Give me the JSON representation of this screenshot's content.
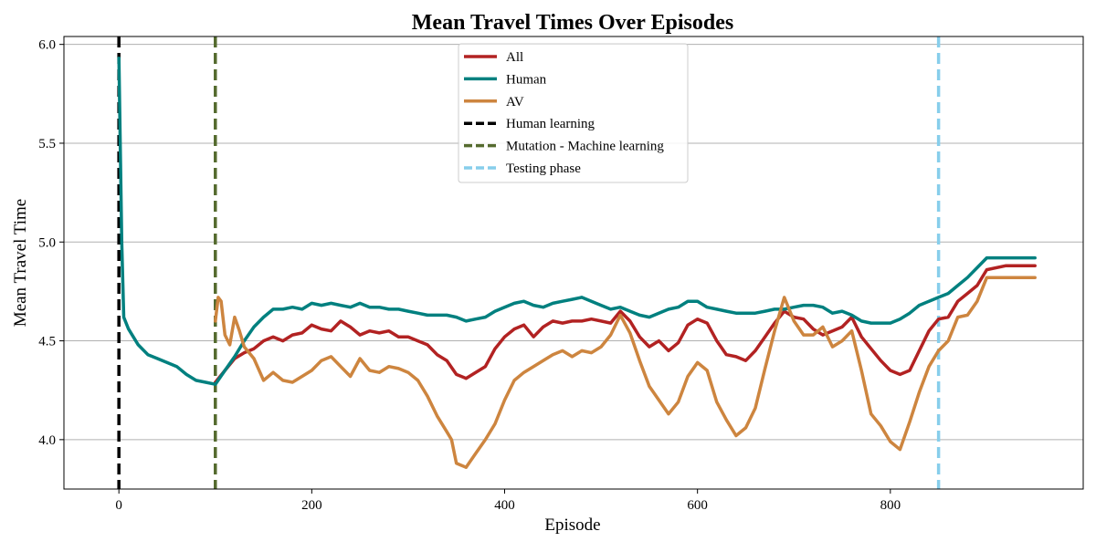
{
  "chart_data": {
    "type": "line",
    "title": "Mean Travel Times Over Episodes",
    "xlabel": "Episode",
    "ylabel": "Mean Travel Time",
    "xlim": [
      -57,
      1000
    ],
    "ylim": [
      3.75,
      6.04
    ],
    "x_ticks": [
      0,
      200,
      400,
      600,
      800
    ],
    "y_ticks": [
      4.0,
      4.5,
      5.0,
      5.5,
      6.0
    ],
    "x_tick_labels": [
      "0",
      "200",
      "400",
      "600",
      "800"
    ],
    "y_tick_labels": [
      "4.0",
      "4.5",
      "5.0",
      "5.5",
      "6.0"
    ],
    "grid": "horizontal",
    "legend_position": "top-center",
    "series": [
      {
        "name": "All",
        "color": "#b22222",
        "points": [
          [
            100,
            4.29
          ],
          [
            110,
            4.35
          ],
          [
            120,
            4.41
          ],
          [
            130,
            4.44
          ],
          [
            140,
            4.46
          ],
          [
            150,
            4.5
          ],
          [
            160,
            4.52
          ],
          [
            170,
            4.5
          ],
          [
            180,
            4.53
          ],
          [
            190,
            4.54
          ],
          [
            200,
            4.58
          ],
          [
            210,
            4.56
          ],
          [
            220,
            4.55
          ],
          [
            230,
            4.6
          ],
          [
            240,
            4.57
          ],
          [
            250,
            4.53
          ],
          [
            260,
            4.55
          ],
          [
            270,
            4.54
          ],
          [
            280,
            4.55
          ],
          [
            290,
            4.52
          ],
          [
            300,
            4.52
          ],
          [
            310,
            4.5
          ],
          [
            320,
            4.48
          ],
          [
            330,
            4.43
          ],
          [
            340,
            4.4
          ],
          [
            350,
            4.33
          ],
          [
            360,
            4.31
          ],
          [
            370,
            4.34
          ],
          [
            380,
            4.37
          ],
          [
            390,
            4.46
          ],
          [
            400,
            4.52
          ],
          [
            410,
            4.56
          ],
          [
            420,
            4.58
          ],
          [
            430,
            4.52
          ],
          [
            440,
            4.57
          ],
          [
            450,
            4.6
          ],
          [
            460,
            4.59
          ],
          [
            470,
            4.6
          ],
          [
            480,
            4.6
          ],
          [
            490,
            4.61
          ],
          [
            500,
            4.6
          ],
          [
            510,
            4.59
          ],
          [
            520,
            4.65
          ],
          [
            530,
            4.6
          ],
          [
            540,
            4.52
          ],
          [
            550,
            4.47
          ],
          [
            560,
            4.5
          ],
          [
            570,
            4.45
          ],
          [
            580,
            4.49
          ],
          [
            590,
            4.58
          ],
          [
            600,
            4.61
          ],
          [
            610,
            4.59
          ],
          [
            620,
            4.5
          ],
          [
            630,
            4.43
          ],
          [
            640,
            4.42
          ],
          [
            650,
            4.4
          ],
          [
            660,
            4.45
          ],
          [
            670,
            4.52
          ],
          [
            680,
            4.59
          ],
          [
            690,
            4.65
          ],
          [
            700,
            4.62
          ],
          [
            710,
            4.61
          ],
          [
            720,
            4.56
          ],
          [
            730,
            4.53
          ],
          [
            740,
            4.55
          ],
          [
            750,
            4.57
          ],
          [
            760,
            4.62
          ],
          [
            770,
            4.52
          ],
          [
            780,
            4.46
          ],
          [
            790,
            4.4
          ],
          [
            800,
            4.35
          ],
          [
            810,
            4.33
          ],
          [
            820,
            4.35
          ],
          [
            830,
            4.45
          ],
          [
            840,
            4.55
          ],
          [
            850,
            4.61
          ],
          [
            860,
            4.62
          ],
          [
            870,
            4.7
          ],
          [
            880,
            4.74
          ],
          [
            890,
            4.78
          ],
          [
            900,
            4.86
          ],
          [
            920,
            4.88
          ],
          [
            950,
            4.88
          ]
        ]
      },
      {
        "name": "Human",
        "color": "#00807f",
        "points": [
          [
            0,
            5.93
          ],
          [
            3,
            5.0
          ],
          [
            5,
            4.62
          ],
          [
            10,
            4.56
          ],
          [
            20,
            4.48
          ],
          [
            30,
            4.43
          ],
          [
            40,
            4.41
          ],
          [
            50,
            4.39
          ],
          [
            60,
            4.37
          ],
          [
            70,
            4.33
          ],
          [
            80,
            4.3
          ],
          [
            90,
            4.29
          ],
          [
            100,
            4.28
          ],
          [
            110,
            4.35
          ],
          [
            120,
            4.42
          ],
          [
            130,
            4.5
          ],
          [
            140,
            4.57
          ],
          [
            150,
            4.62
          ],
          [
            160,
            4.66
          ],
          [
            170,
            4.66
          ],
          [
            180,
            4.67
          ],
          [
            190,
            4.66
          ],
          [
            200,
            4.69
          ],
          [
            210,
            4.68
          ],
          [
            220,
            4.69
          ],
          [
            230,
            4.68
          ],
          [
            240,
            4.67
          ],
          [
            250,
            4.69
          ],
          [
            260,
            4.67
          ],
          [
            270,
            4.67
          ],
          [
            280,
            4.66
          ],
          [
            290,
            4.66
          ],
          [
            300,
            4.65
          ],
          [
            310,
            4.64
          ],
          [
            320,
            4.63
          ],
          [
            330,
            4.63
          ],
          [
            340,
            4.63
          ],
          [
            350,
            4.62
          ],
          [
            360,
            4.6
          ],
          [
            370,
            4.61
          ],
          [
            380,
            4.62
          ],
          [
            390,
            4.65
          ],
          [
            400,
            4.67
          ],
          [
            410,
            4.69
          ],
          [
            420,
            4.7
          ],
          [
            430,
            4.68
          ],
          [
            440,
            4.67
          ],
          [
            450,
            4.69
          ],
          [
            460,
            4.7
          ],
          [
            470,
            4.71
          ],
          [
            480,
            4.72
          ],
          [
            490,
            4.7
          ],
          [
            500,
            4.68
          ],
          [
            510,
            4.66
          ],
          [
            520,
            4.67
          ],
          [
            530,
            4.65
          ],
          [
            540,
            4.63
          ],
          [
            550,
            4.62
          ],
          [
            560,
            4.64
          ],
          [
            570,
            4.66
          ],
          [
            580,
            4.67
          ],
          [
            590,
            4.7
          ],
          [
            600,
            4.7
          ],
          [
            610,
            4.67
          ],
          [
            620,
            4.66
          ],
          [
            630,
            4.65
          ],
          [
            640,
            4.64
          ],
          [
            650,
            4.64
          ],
          [
            660,
            4.64
          ],
          [
            670,
            4.65
          ],
          [
            680,
            4.66
          ],
          [
            690,
            4.66
          ],
          [
            700,
            4.67
          ],
          [
            710,
            4.68
          ],
          [
            720,
            4.68
          ],
          [
            730,
            4.67
          ],
          [
            740,
            4.64
          ],
          [
            750,
            4.65
          ],
          [
            760,
            4.63
          ],
          [
            770,
            4.6
          ],
          [
            780,
            4.59
          ],
          [
            790,
            4.59
          ],
          [
            800,
            4.59
          ],
          [
            810,
            4.61
          ],
          [
            820,
            4.64
          ],
          [
            830,
            4.68
          ],
          [
            840,
            4.7
          ],
          [
            850,
            4.72
          ],
          [
            860,
            4.74
          ],
          [
            870,
            4.78
          ],
          [
            880,
            4.82
          ],
          [
            890,
            4.87
          ],
          [
            900,
            4.92
          ],
          [
            920,
            4.92
          ],
          [
            950,
            4.92
          ]
        ]
      },
      {
        "name": "AV",
        "color": "#cd853f",
        "points": [
          [
            100,
            4.6
          ],
          [
            103,
            4.72
          ],
          [
            106,
            4.7
          ],
          [
            110,
            4.53
          ],
          [
            115,
            4.48
          ],
          [
            120,
            4.62
          ],
          [
            125,
            4.55
          ],
          [
            130,
            4.47
          ],
          [
            140,
            4.41
          ],
          [
            150,
            4.3
          ],
          [
            160,
            4.34
          ],
          [
            170,
            4.3
          ],
          [
            180,
            4.29
          ],
          [
            190,
            4.32
          ],
          [
            200,
            4.35
          ],
          [
            210,
            4.4
          ],
          [
            220,
            4.42
          ],
          [
            230,
            4.37
          ],
          [
            240,
            4.32
          ],
          [
            250,
            4.41
          ],
          [
            260,
            4.35
          ],
          [
            270,
            4.34
          ],
          [
            280,
            4.37
          ],
          [
            290,
            4.36
          ],
          [
            300,
            4.34
          ],
          [
            310,
            4.3
          ],
          [
            320,
            4.22
          ],
          [
            330,
            4.12
          ],
          [
            340,
            4.04
          ],
          [
            345,
            4.0
          ],
          [
            350,
            3.88
          ],
          [
            355,
            3.87
          ],
          [
            360,
            3.86
          ],
          [
            370,
            3.93
          ],
          [
            380,
            4.0
          ],
          [
            390,
            4.08
          ],
          [
            400,
            4.2
          ],
          [
            410,
            4.3
          ],
          [
            420,
            4.34
          ],
          [
            430,
            4.37
          ],
          [
            440,
            4.4
          ],
          [
            450,
            4.43
          ],
          [
            460,
            4.45
          ],
          [
            470,
            4.42
          ],
          [
            480,
            4.45
          ],
          [
            490,
            4.44
          ],
          [
            500,
            4.47
          ],
          [
            510,
            4.53
          ],
          [
            520,
            4.63
          ],
          [
            530,
            4.54
          ],
          [
            540,
            4.4
          ],
          [
            550,
            4.27
          ],
          [
            560,
            4.2
          ],
          [
            570,
            4.13
          ],
          [
            580,
            4.19
          ],
          [
            590,
            4.32
          ],
          [
            600,
            4.39
          ],
          [
            610,
            4.35
          ],
          [
            620,
            4.19
          ],
          [
            630,
            4.1
          ],
          [
            640,
            4.02
          ],
          [
            650,
            4.06
          ],
          [
            660,
            4.16
          ],
          [
            670,
            4.36
          ],
          [
            680,
            4.55
          ],
          [
            690,
            4.72
          ],
          [
            700,
            4.6
          ],
          [
            710,
            4.53
          ],
          [
            720,
            4.53
          ],
          [
            730,
            4.57
          ],
          [
            740,
            4.47
          ],
          [
            750,
            4.5
          ],
          [
            760,
            4.55
          ],
          [
            770,
            4.35
          ],
          [
            780,
            4.13
          ],
          [
            790,
            4.07
          ],
          [
            800,
            3.99
          ],
          [
            810,
            3.95
          ],
          [
            820,
            4.09
          ],
          [
            830,
            4.24
          ],
          [
            840,
            4.37
          ],
          [
            850,
            4.45
          ],
          [
            860,
            4.5
          ],
          [
            870,
            4.62
          ],
          [
            880,
            4.63
          ],
          [
            890,
            4.7
          ],
          [
            900,
            4.82
          ],
          [
            920,
            4.82
          ],
          [
            950,
            4.82
          ]
        ]
      }
    ],
    "vlines": [
      {
        "name": "Human learning",
        "x": 0,
        "color": "#000000",
        "style": "dashed"
      },
      {
        "name": "Mutation - Machine learning",
        "x": 100,
        "color": "#556b2f",
        "style": "dashed"
      },
      {
        "name": "Testing phase",
        "x": 850,
        "color": "#87ceeb",
        "style": "dashed"
      }
    ],
    "legend": [
      "All",
      "Human",
      "AV",
      "Human learning",
      "Mutation - Machine learning",
      "Testing phase"
    ]
  }
}
